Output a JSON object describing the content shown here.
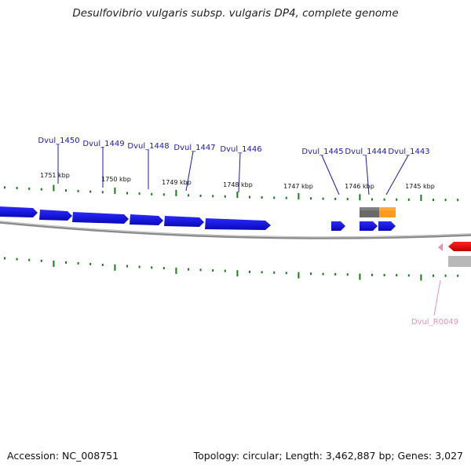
{
  "title": "Desulfovibrio vulgaris subsp. vulgaris DP4, complete genome",
  "footer": {
    "accession": "Accession: NC_008751",
    "summary": "Topology: circular; Length: 3,462,887 bp; Genes: 3,027"
  },
  "colors": {
    "forward_gene": "#1010e0",
    "reverse_gene": "#ee0000",
    "rrna": "#f08cb0",
    "gene_label": "#1a1ab0",
    "rrna_label": "#e690b8",
    "tick": "#1b7a1b",
    "backbone": "#777777",
    "pseudo_dark": "#606060",
    "pseudo_orange": "#ff9a1a",
    "pseudo_light": "#b0b0b0"
  },
  "kbp_markers": [
    "1751 kbp",
    "1750 kbp",
    "1749 kbp",
    "1748 kbp",
    "1747 kbp",
    "1746 kbp",
    "1745 kbp"
  ],
  "forward_genes": [
    "Dvul_1450",
    "Dvul_1449",
    "Dvul_1448",
    "Dvul_1447",
    "Dvul_1446",
    "Dvul_1445",
    "Dvul_1444",
    "Dvul_1443"
  ],
  "reverse_features": [
    "Dvul_R0049"
  ]
}
